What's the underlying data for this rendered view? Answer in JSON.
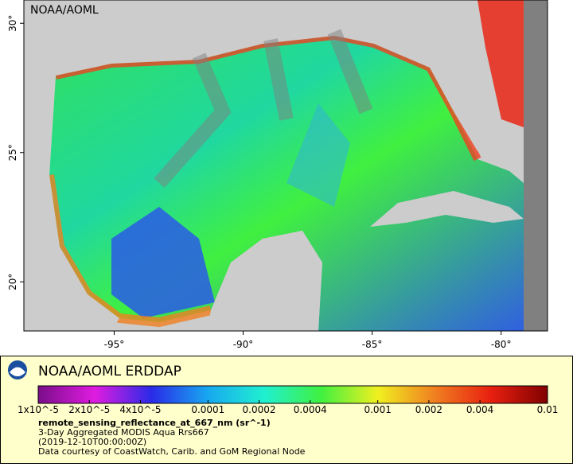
{
  "map": {
    "watermark": "NOAA/AOML",
    "xlim": [
      -98.5,
      -78.2
    ],
    "xticks": [
      {
        "value": -95,
        "label": "-95°"
      },
      {
        "value": -90,
        "label": "-90°"
      },
      {
        "value": -85,
        "label": "-85°"
      },
      {
        "value": -80,
        "label": "-80°"
      }
    ],
    "ylim": [
      18.1,
      30.9
    ],
    "yticks": [
      {
        "value": 20,
        "label": "20°"
      },
      {
        "value": 25,
        "label": "25°"
      },
      {
        "value": 30,
        "label": "30°"
      }
    ]
  },
  "legend": {
    "title": "NOAA/AOML ERDDAP",
    "colorbar": {
      "lim": [
        1e-05,
        0.01
      ],
      "log_scale": true,
      "colors": [
        "#7a0d8a",
        "#e01ce0",
        "#2a2ae8",
        "#18a8f0",
        "#20f0d0",
        "#40f040",
        "#f0f020",
        "#f08020",
        "#e82010",
        "#800000"
      ],
      "ticks": [
        {
          "value": 1e-05,
          "label": "1x10^-5"
        },
        {
          "value": 2e-05,
          "label": "2x10^-5"
        },
        {
          "value": 4e-05,
          "label": "4x10^-5"
        },
        0.0001,
        0.0002,
        0.0004,
        0.001,
        0.002,
        0.004,
        0.01
      ]
    },
    "variable": "remote_sensing_reflectance_at_667_nm (sr^-1)",
    "description": "3-Day Aggregated MODIS Aqua Rrs667",
    "time": "(2019-12-10T00:00:00Z)",
    "credit": "Data courtesy of CoastWatch, Carib. and GoM Regional Node"
  }
}
